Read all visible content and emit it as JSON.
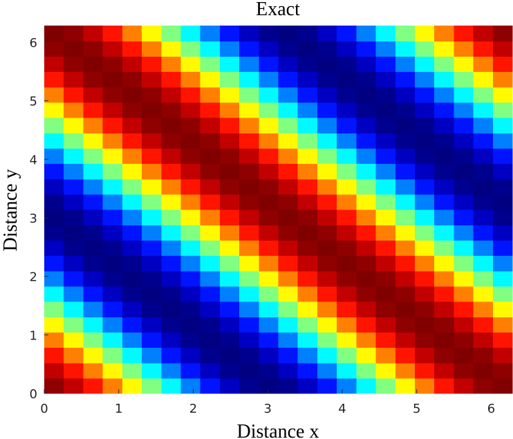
{
  "chart_data": {
    "type": "heatmap",
    "title": "Exact",
    "xlabel": "Distance x",
    "ylabel": "Distance y",
    "colormap": "jet",
    "clim": [
      -1,
      1
    ],
    "xlim": [
      0,
      6.2832
    ],
    "ylim": [
      0,
      6.2832
    ],
    "xticks": [
      0,
      1,
      2,
      3,
      4,
      5,
      6
    ],
    "yticks": [
      0,
      1,
      2,
      3,
      4,
      5,
      6
    ],
    "z": [
      [
        0.97,
        0.87,
        0.71,
        0.5,
        0.26,
        0,
        -0.26,
        -0.5,
        -0.71,
        -0.87,
        -0.97,
        -1,
        -0.97,
        -0.87,
        -0.71,
        -0.5,
        -0.26,
        0,
        0.26,
        0.5,
        0.71,
        0.87,
        0.97,
        1
      ],
      [
        0.87,
        0.71,
        0.5,
        0.26,
        0,
        -0.26,
        -0.5,
        -0.71,
        -0.87,
        -0.97,
        -1,
        -0.97,
        -0.87,
        -0.71,
        -0.5,
        -0.26,
        0,
        0.26,
        0.5,
        0.71,
        0.87,
        0.97,
        1,
        0.97
      ],
      [
        0.71,
        0.5,
        0.26,
        0,
        -0.26,
        -0.5,
        -0.71,
        -0.87,
        -0.97,
        -1,
        -0.97,
        -0.87,
        -0.71,
        -0.5,
        -0.26,
        0,
        0.26,
        0.5,
        0.71,
        0.87,
        0.97,
        1,
        0.97,
        0.87
      ],
      [
        0.5,
        0.26,
        0,
        -0.26,
        -0.5,
        -0.71,
        -0.87,
        -0.97,
        -1,
        -0.97,
        -0.87,
        -0.71,
        -0.5,
        -0.26,
        0,
        0.26,
        0.5,
        0.71,
        0.87,
        0.97,
        1,
        0.97,
        0.87,
        0.71
      ],
      [
        0.26,
        0,
        -0.26,
        -0.5,
        -0.71,
        -0.87,
        -0.97,
        -1,
        -0.97,
        -0.87,
        -0.71,
        -0.5,
        -0.26,
        0,
        0.26,
        0.5,
        0.71,
        0.87,
        0.97,
        1,
        0.97,
        0.87,
        0.71,
        0.5
      ],
      [
        0,
        -0.26,
        -0.5,
        -0.71,
        -0.87,
        -0.97,
        -1,
        -0.97,
        -0.87,
        -0.71,
        -0.5,
        -0.26,
        0,
        0.26,
        0.5,
        0.71,
        0.87,
        0.97,
        1,
        0.97,
        0.87,
        0.71,
        0.5,
        0.26
      ],
      [
        -0.26,
        -0.5,
        -0.71,
        -0.87,
        -0.97,
        -1,
        -0.97,
        -0.87,
        -0.71,
        -0.5,
        -0.26,
        0,
        0.26,
        0.5,
        0.71,
        0.87,
        0.97,
        1,
        0.97,
        0.87,
        0.71,
        0.5,
        0.26,
        0
      ],
      [
        -0.5,
        -0.71,
        -0.87,
        -0.97,
        -1,
        -0.97,
        -0.87,
        -0.71,
        -0.5,
        -0.26,
        0,
        0.26,
        0.5,
        0.71,
        0.87,
        0.97,
        1,
        0.97,
        0.87,
        0.71,
        0.5,
        0.26,
        0,
        -0.26
      ],
      [
        -0.71,
        -0.87,
        -0.97,
        -1,
        -0.97,
        -0.87,
        -0.71,
        -0.5,
        -0.26,
        0,
        0.26,
        0.5,
        0.71,
        0.87,
        0.97,
        1,
        0.97,
        0.87,
        0.71,
        0.5,
        0.26,
        0,
        -0.26,
        -0.5
      ],
      [
        -0.87,
        -0.97,
        -1,
        -0.97,
        -0.87,
        -0.71,
        -0.5,
        -0.26,
        0,
        0.26,
        0.5,
        0.71,
        0.87,
        0.97,
        1,
        0.97,
        0.87,
        0.71,
        0.5,
        0.26,
        0,
        -0.26,
        -0.5,
        -0.71
      ],
      [
        -0.97,
        -1,
        -0.97,
        -0.87,
        -0.71,
        -0.5,
        -0.26,
        0,
        0.26,
        0.5,
        0.71,
        0.87,
        0.97,
        1,
        0.97,
        0.87,
        0.71,
        0.5,
        0.26,
        0,
        -0.26,
        -0.5,
        -0.71,
        -0.87
      ],
      [
        -1,
        -0.97,
        -0.87,
        -0.71,
        -0.5,
        -0.26,
        0,
        0.26,
        0.5,
        0.71,
        0.87,
        0.97,
        1,
        0.97,
        0.87,
        0.71,
        0.5,
        0.26,
        0,
        -0.26,
        -0.5,
        -0.71,
        -0.87,
        -0.97
      ],
      [
        -0.97,
        -0.87,
        -0.71,
        -0.5,
        -0.26,
        0,
        0.26,
        0.5,
        0.71,
        0.87,
        0.97,
        1,
        0.97,
        0.87,
        0.71,
        0.5,
        0.26,
        0,
        -0.26,
        -0.5,
        -0.71,
        -0.87,
        -0.97,
        -1
      ],
      [
        -0.87,
        -0.71,
        -0.5,
        -0.26,
        0,
        0.26,
        0.5,
        0.71,
        0.87,
        0.97,
        1,
        0.97,
        0.87,
        0.71,
        0.5,
        0.26,
        0,
        -0.26,
        -0.5,
        -0.71,
        -0.87,
        -0.97,
        -1,
        -0.97
      ],
      [
        -0.71,
        -0.5,
        -0.26,
        0,
        0.26,
        0.5,
        0.71,
        0.87,
        0.97,
        1,
        0.97,
        0.87,
        0.71,
        0.5,
        0.26,
        0,
        -0.26,
        -0.5,
        -0.71,
        -0.87,
        -0.97,
        -1,
        -0.97,
        -0.87
      ],
      [
        -0.5,
        -0.26,
        0,
        0.26,
        0.5,
        0.71,
        0.87,
        0.97,
        1,
        0.97,
        0.87,
        0.71,
        0.5,
        0.26,
        0,
        -0.26,
        -0.5,
        -0.71,
        -0.87,
        -0.97,
        -1,
        -0.97,
        -0.87,
        -0.71
      ],
      [
        -0.26,
        0,
        0.26,
        0.5,
        0.71,
        0.87,
        0.97,
        1,
        0.97,
        0.87,
        0.71,
        0.5,
        0.26,
        0,
        -0.26,
        -0.5,
        -0.71,
        -0.87,
        -0.97,
        -1,
        -0.97,
        -0.87,
        -0.71,
        -0.5
      ],
      [
        0,
        0.26,
        0.5,
        0.71,
        0.87,
        0.97,
        1,
        0.97,
        0.87,
        0.71,
        0.5,
        0.26,
        0,
        -0.26,
        -0.5,
        -0.71,
        -0.87,
        -0.97,
        -1,
        -0.97,
        -0.87,
        -0.71,
        -0.5,
        -0.26
      ],
      [
        0.26,
        0.5,
        0.71,
        0.87,
        0.97,
        1,
        0.97,
        0.87,
        0.71,
        0.5,
        0.26,
        0,
        -0.26,
        -0.5,
        -0.71,
        -0.87,
        -0.97,
        -1,
        -0.97,
        -0.87,
        -0.71,
        -0.5,
        -0.26,
        0
      ],
      [
        0.5,
        0.71,
        0.87,
        0.97,
        1,
        0.97,
        0.87,
        0.71,
        0.5,
        0.26,
        0,
        -0.26,
        -0.5,
        -0.71,
        -0.87,
        -0.97,
        -1,
        -0.97,
        -0.87,
        -0.71,
        -0.5,
        -0.26,
        0,
        0.26
      ],
      [
        0.71,
        0.87,
        0.97,
        1,
        0.97,
        0.87,
        0.71,
        0.5,
        0.26,
        0,
        -0.26,
        -0.5,
        -0.71,
        -0.87,
        -0.97,
        -1,
        -0.97,
        -0.87,
        -0.71,
        -0.5,
        -0.26,
        0,
        0.26,
        0.5
      ],
      [
        0.87,
        0.97,
        1,
        0.97,
        0.87,
        0.71,
        0.5,
        0.26,
        0,
        -0.26,
        -0.5,
        -0.71,
        -0.87,
        -0.97,
        -1,
        -0.97,
        -0.87,
        -0.71,
        -0.5,
        -0.26,
        0,
        0.26,
        0.5,
        0.71
      ],
      [
        0.97,
        1,
        0.97,
        0.87,
        0.71,
        0.5,
        0.26,
        0,
        -0.26,
        -0.5,
        -0.71,
        -0.87,
        -0.97,
        -1,
        -0.97,
        -0.87,
        -0.71,
        -0.5,
        -0.26,
        0,
        0.26,
        0.5,
        0.71,
        0.87
      ],
      [
        1,
        0.97,
        0.87,
        0.71,
        0.5,
        0.26,
        0,
        -0.26,
        -0.5,
        -0.71,
        -0.87,
        -0.97,
        -1,
        -0.97,
        -0.87,
        -0.71,
        -0.5,
        -0.26,
        0,
        0.26,
        0.5,
        0.71,
        0.87,
        0.97
      ]
    ]
  }
}
